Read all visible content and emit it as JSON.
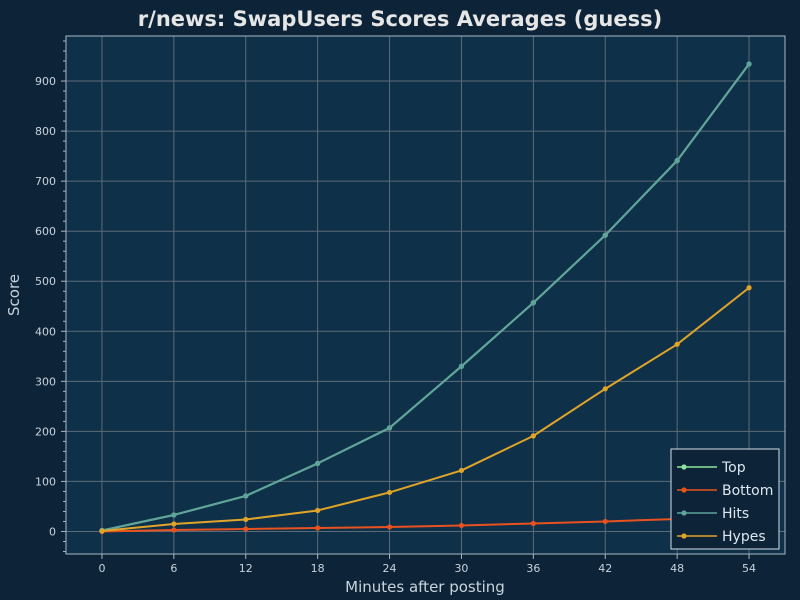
{
  "chart_data": {
    "type": "line",
    "title": "r/news: SwapUsers Scores Averages (guess)",
    "xlabel": "Minutes after posting",
    "ylabel": "Score",
    "x": [
      0,
      6,
      12,
      18,
      24,
      30,
      36,
      42,
      48,
      54
    ],
    "x_ticks": [
      "0",
      "6",
      "12",
      "18",
      "24",
      "30",
      "36",
      "42",
      "48",
      "54"
    ],
    "y_ticks": [
      "0",
      "100",
      "200",
      "300",
      "400",
      "500",
      "600",
      "700",
      "800",
      "900"
    ],
    "xlim": [
      -3,
      57
    ],
    "ylim": [
      -45,
      990
    ],
    "grid": true,
    "legend_position": "bottom-right",
    "series": [
      {
        "name": "Top",
        "color": "#8fe39a",
        "values": [
          2,
          33,
          71,
          136,
          207,
          330,
          457,
          592,
          741,
          934
        ]
      },
      {
        "name": "Bottom",
        "color": "#e8521f",
        "values": [
          0,
          3,
          5,
          7,
          9,
          12,
          16,
          20,
          25,
          30
        ]
      },
      {
        "name": "Hits",
        "color": "#5fa39b",
        "values": [
          2,
          33,
          71,
          136,
          207,
          330,
          457,
          592,
          741,
          934
        ]
      },
      {
        "name": "Hypes",
        "color": "#e0a428",
        "values": [
          1,
          15,
          24,
          42,
          78,
          122,
          191,
          285,
          374,
          487
        ]
      }
    ],
    "colors": {
      "background": "#0d2438",
      "plot_background": "#0e3049",
      "grid": "#5d6b78",
      "axis": "#a9b7c4"
    }
  }
}
